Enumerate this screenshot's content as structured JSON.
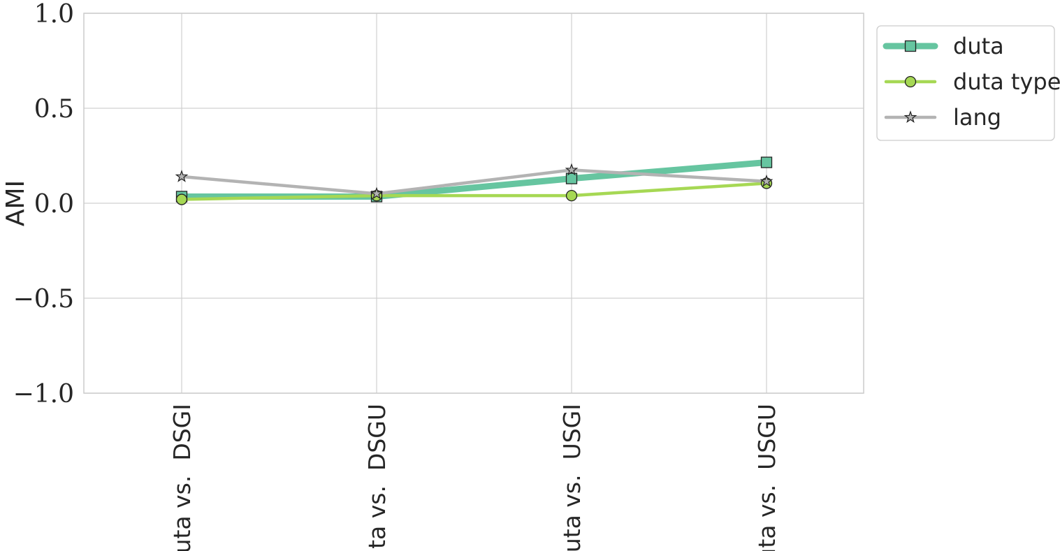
{
  "chart_data": {
    "type": "line",
    "title": "",
    "xlabel": "",
    "ylabel": "AMI",
    "ylim": [
      -1.0,
      1.0
    ],
    "yticks": [
      1.0,
      0.5,
      0.0,
      -0.5,
      -1.0
    ],
    "ytick_labels": [
      "1.0",
      "0.5",
      "0.0",
      "−0.5",
      "−1.0"
    ],
    "categories": [
      "duta vs.  DSGI",
      "duta vs.  DSGU",
      "duta vs.  USGI",
      "duta vs.  USGU"
    ],
    "grid": true,
    "legend_position": "outside-top-right",
    "series": [
      {
        "name": "duta",
        "values": [
          0.035,
          0.035,
          0.13,
          0.215
        ],
        "color": "#66c5a0",
        "marker": "square",
        "width": "thick"
      },
      {
        "name": "duta type",
        "values": [
          0.02,
          0.04,
          0.04,
          0.105
        ],
        "color": "#a6d854",
        "marker": "circle",
        "width": "medium"
      },
      {
        "name": "lang",
        "values": [
          0.14,
          0.05,
          0.175,
          0.115
        ],
        "color": "#b3b3b3",
        "marker": "star",
        "width": "medium"
      }
    ]
  }
}
